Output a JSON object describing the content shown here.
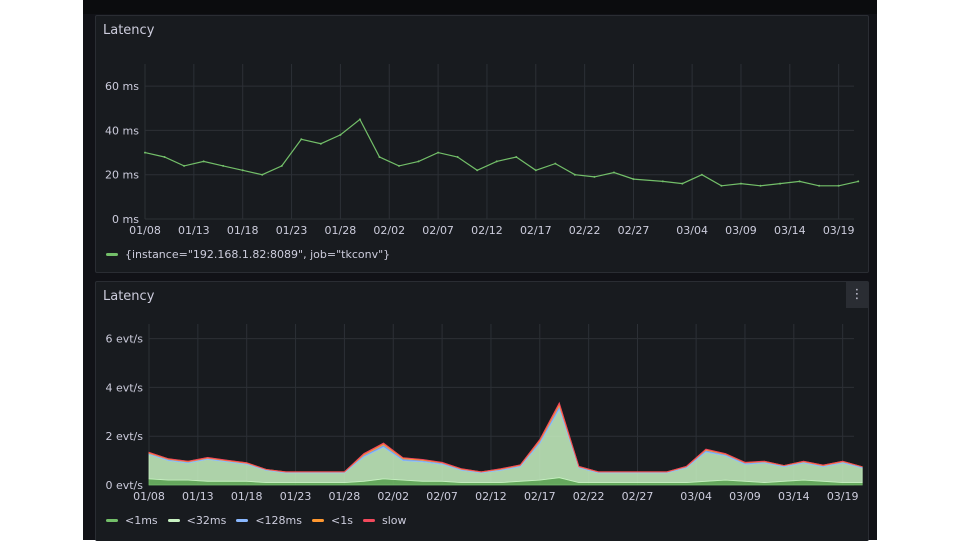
{
  "panels": [
    {
      "title": "Latency"
    },
    {
      "title": "Latency",
      "menu_icon": "kebab-menu-icon",
      "menu_glyph": "⋮"
    }
  ],
  "chart_data": [
    {
      "type": "line",
      "title": "Latency",
      "x_ticks": [
        "01/08",
        "01/13",
        "01/18",
        "01/23",
        "01/28",
        "02/02",
        "02/07",
        "02/12",
        "02/17",
        "02/22",
        "02/27",
        "03/04",
        "03/09",
        "03/14",
        "03/19"
      ],
      "y_ticks": [
        "0 ms",
        "20 ms",
        "40 ms",
        "60 ms"
      ],
      "ylim": [
        0,
        70
      ],
      "y_unit": "ms",
      "grid": true,
      "legend_position": "bottom-left",
      "series": [
        {
          "name": "{instance=\"192.168.1.82:8089\", job=\"tkconv\"}",
          "color": "#73bf69",
          "x": [
            "01/08",
            "01/10",
            "01/12",
            "01/14",
            "01/16",
            "01/18",
            "01/20",
            "01/22",
            "01/24",
            "01/26",
            "01/28",
            "01/30",
            "02/01",
            "02/03",
            "02/05",
            "02/07",
            "02/09",
            "02/11",
            "02/13",
            "02/15",
            "02/17",
            "02/19",
            "02/21",
            "02/23",
            "02/25",
            "02/27",
            "03/01",
            "03/03",
            "03/05",
            "03/07",
            "03/09",
            "03/11",
            "03/13",
            "03/15",
            "03/17",
            "03/19",
            "03/21"
          ],
          "values": [
            30,
            28,
            24,
            26,
            24,
            22,
            20,
            24,
            36,
            34,
            38,
            45,
            28,
            24,
            26,
            30,
            28,
            22,
            26,
            28,
            22,
            25,
            20,
            19,
            21,
            18,
            17,
            16,
            20,
            15,
            16,
            15,
            16,
            17,
            15,
            15,
            17
          ]
        }
      ]
    },
    {
      "type": "area",
      "title": "Latency",
      "x_ticks": [
        "01/08",
        "01/13",
        "01/18",
        "01/23",
        "01/28",
        "02/02",
        "02/07",
        "02/12",
        "02/17",
        "02/22",
        "02/27",
        "03/04",
        "03/09",
        "03/14",
        "03/19"
      ],
      "y_ticks": [
        "0 evt/s",
        "2 evt/s",
        "4 evt/s",
        "6 evt/s"
      ],
      "ylim": [
        0,
        6.6
      ],
      "y_unit": "evt/s",
      "stacked": true,
      "grid": true,
      "legend_position": "bottom-left",
      "x": [
        "01/08",
        "01/10",
        "01/12",
        "01/14",
        "01/16",
        "01/18",
        "01/20",
        "01/22",
        "01/24",
        "01/26",
        "01/28",
        "01/30",
        "02/01",
        "02/03",
        "02/05",
        "02/07",
        "02/09",
        "02/11",
        "02/13",
        "02/15",
        "02/17",
        "02/19",
        "02/21",
        "02/23",
        "02/25",
        "02/27",
        "03/01",
        "03/03",
        "03/05",
        "03/07",
        "03/09",
        "03/11",
        "03/13",
        "03/15",
        "03/17",
        "03/19",
        "03/21"
      ],
      "series": [
        {
          "name": "<1ms",
          "color": "#73bf69",
          "values": [
            0.25,
            0.2,
            0.2,
            0.15,
            0.15,
            0.15,
            0.1,
            0.1,
            0.1,
            0.1,
            0.1,
            0.15,
            0.25,
            0.2,
            0.15,
            0.15,
            0.1,
            0.1,
            0.1,
            0.15,
            0.2,
            0.3,
            0.1,
            0.1,
            0.1,
            0.1,
            0.1,
            0.1,
            0.15,
            0.2,
            0.15,
            0.1,
            0.15,
            0.2,
            0.15,
            0.1,
            0.1
          ]
        },
        {
          "name": "<32ms",
          "color": "#c8f2c2",
          "values": [
            1.0,
            0.8,
            0.7,
            0.9,
            0.8,
            0.7,
            0.5,
            0.4,
            0.4,
            0.4,
            0.4,
            1.0,
            1.3,
            0.8,
            0.8,
            0.7,
            0.5,
            0.4,
            0.5,
            0.6,
            1.5,
            2.8,
            0.6,
            0.4,
            0.4,
            0.4,
            0.4,
            0.6,
            1.2,
            1.0,
            0.7,
            0.8,
            0.6,
            0.7,
            0.6,
            0.8,
            0.6
          ]
        },
        {
          "name": "<128ms",
          "color": "#8ab8ff",
          "values": [
            0.05,
            0.05,
            0.05,
            0.05,
            0.04,
            0.04,
            0.03,
            0.03,
            0.03,
            0.03,
            0.03,
            0.08,
            0.1,
            0.08,
            0.06,
            0.05,
            0.04,
            0.03,
            0.04,
            0.05,
            0.1,
            0.15,
            0.04,
            0.03,
            0.03,
            0.03,
            0.03,
            0.04,
            0.08,
            0.06,
            0.05,
            0.05,
            0.04,
            0.05,
            0.04,
            0.05,
            0.04
          ]
        },
        {
          "name": "<1s",
          "color": "#ff9830",
          "values": [
            0.03,
            0.02,
            0.02,
            0.02,
            0.02,
            0.02,
            0.01,
            0.01,
            0.01,
            0.01,
            0.01,
            0.04,
            0.05,
            0.03,
            0.03,
            0.02,
            0.02,
            0.01,
            0.02,
            0.02,
            0.05,
            0.08,
            0.02,
            0.01,
            0.01,
            0.01,
            0.01,
            0.02,
            0.03,
            0.02,
            0.02,
            0.02,
            0.01,
            0.02,
            0.02,
            0.02,
            0.01
          ]
        },
        {
          "name": "slow",
          "color": "#f2495c",
          "values": [
            0.01,
            0.01,
            0.01,
            0.01,
            0.01,
            0.01,
            0,
            0,
            0,
            0,
            0,
            0.02,
            0.02,
            0.01,
            0.01,
            0.01,
            0.01,
            0,
            0.01,
            0.01,
            0.02,
            0.04,
            0.01,
            0,
            0,
            0,
            0,
            0.01,
            0.01,
            0.01,
            0.01,
            0.01,
            0,
            0.01,
            0.01,
            0.01,
            0
          ]
        }
      ]
    }
  ]
}
